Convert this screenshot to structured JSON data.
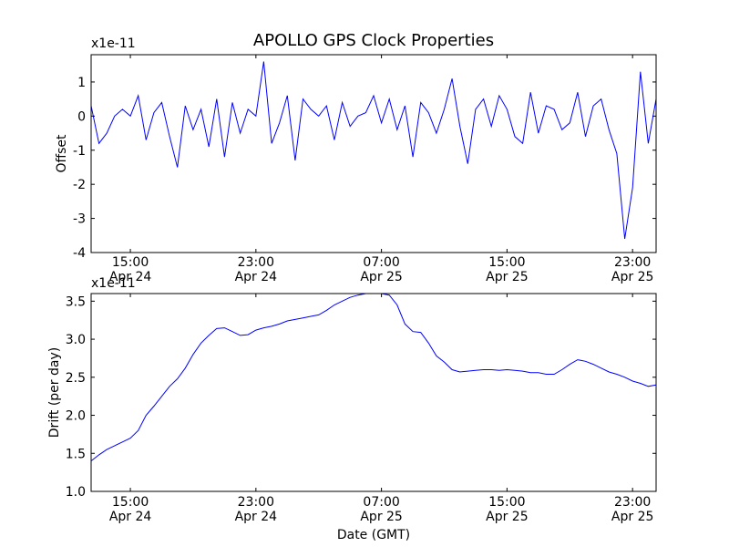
{
  "figure_title": "APOLLO GPS Clock Properties",
  "colors": {
    "line": "#0000ff",
    "axes": "#000000",
    "background": "#ffffff"
  },
  "chart_data": [
    {
      "type": "line",
      "name": "offset",
      "ylabel": "Offset",
      "xlabel": "",
      "scale_label": "x1e-11",
      "ylim": [
        -4,
        1.8
      ],
      "xlim": [
        12.5,
        48.5
      ],
      "yticks": [
        {
          "value": 1,
          "label": "1"
        },
        {
          "value": 0,
          "label": "0"
        },
        {
          "value": -1,
          "label": "-1"
        },
        {
          "value": -2,
          "label": "-2"
        },
        {
          "value": -3,
          "label": "-3"
        },
        {
          "value": -4,
          "label": "-4"
        }
      ],
      "xticks": [
        {
          "value": 15,
          "time": "15:00",
          "date": "Apr 24"
        },
        {
          "value": 23,
          "time": "23:00",
          "date": "Apr 24"
        },
        {
          "value": 31,
          "time": "07:00",
          "date": "Apr 25"
        },
        {
          "value": 39,
          "time": "15:00",
          "date": "Apr 25"
        },
        {
          "value": 47,
          "time": "23:00",
          "date": "Apr 25"
        }
      ],
      "x": [
        12.5,
        13.0,
        13.5,
        14.0,
        14.5,
        15.0,
        15.5,
        16.0,
        16.5,
        17.0,
        17.5,
        18.0,
        18.5,
        19.0,
        19.5,
        20.0,
        20.5,
        21.0,
        21.5,
        22.0,
        22.5,
        23.0,
        23.5,
        24.0,
        24.5,
        25.0,
        25.5,
        26.0,
        26.5,
        27.0,
        27.5,
        28.0,
        28.5,
        29.0,
        29.5,
        30.0,
        30.5,
        31.0,
        31.5,
        32.0,
        32.5,
        33.0,
        33.5,
        34.0,
        34.5,
        35.0,
        35.5,
        36.0,
        36.5,
        37.0,
        37.5,
        38.0,
        38.5,
        39.0,
        39.5,
        40.0,
        40.5,
        41.0,
        41.5,
        42.0,
        42.5,
        43.0,
        43.5,
        44.0,
        44.5,
        45.0,
        45.5,
        46.0,
        46.5,
        47.0,
        47.5,
        48.0,
        48.5
      ],
      "y": [
        0.3,
        -0.8,
        -0.5,
        0.0,
        0.2,
        0.0,
        0.6,
        -0.7,
        0.1,
        0.4,
        -0.6,
        -1.5,
        0.3,
        -0.4,
        0.2,
        -0.9,
        0.5,
        -1.2,
        0.4,
        -0.5,
        0.2,
        0.0,
        1.6,
        -0.8,
        -0.2,
        0.6,
        -1.3,
        0.5,
        0.2,
        0.0,
        0.3,
        -0.7,
        0.4,
        -0.3,
        0.0,
        0.1,
        0.6,
        -0.2,
        0.5,
        -0.4,
        0.3,
        -1.2,
        0.4,
        0.1,
        -0.5,
        0.2,
        1.1,
        -0.3,
        -1.4,
        0.2,
        0.5,
        -0.3,
        0.6,
        0.2,
        -0.6,
        -0.8,
        0.7,
        -0.5,
        0.3,
        0.2,
        -0.4,
        -0.2,
        0.7,
        -0.6,
        0.3,
        0.5,
        -0.4,
        -1.1,
        -3.6,
        -2.1,
        1.3,
        -0.8,
        0.5
      ]
    },
    {
      "type": "line",
      "name": "drift",
      "ylabel": "Drift (per day)",
      "xlabel": "Date (GMT)",
      "scale_label": "x1e-11",
      "ylim": [
        1.0,
        3.6
      ],
      "xlim": [
        12.5,
        48.5
      ],
      "yticks": [
        {
          "value": 1.0,
          "label": "1.0"
        },
        {
          "value": 1.5,
          "label": "1.5"
        },
        {
          "value": 2.0,
          "label": "2.0"
        },
        {
          "value": 2.5,
          "label": "2.5"
        },
        {
          "value": 3.0,
          "label": "3.0"
        },
        {
          "value": 3.5,
          "label": "3.5"
        }
      ],
      "xticks": [
        {
          "value": 15,
          "time": "15:00",
          "date": "Apr 24"
        },
        {
          "value": 23,
          "time": "23:00",
          "date": "Apr 24"
        },
        {
          "value": 31,
          "time": "07:00",
          "date": "Apr 25"
        },
        {
          "value": 39,
          "time": "15:00",
          "date": "Apr 25"
        },
        {
          "value": 47,
          "time": "23:00",
          "date": "Apr 25"
        }
      ],
      "x": [
        12.5,
        13.0,
        13.5,
        14.0,
        14.5,
        15.0,
        15.5,
        16.0,
        16.5,
        17.0,
        17.5,
        18.0,
        18.5,
        19.0,
        19.5,
        20.0,
        20.5,
        21.0,
        21.5,
        22.0,
        22.5,
        23.0,
        23.5,
        24.0,
        24.5,
        25.0,
        25.5,
        26.0,
        26.5,
        27.0,
        27.5,
        28.0,
        28.5,
        29.0,
        29.5,
        30.0,
        30.5,
        31.0,
        31.5,
        32.0,
        32.5,
        33.0,
        33.5,
        34.0,
        34.5,
        35.0,
        35.5,
        36.0,
        36.5,
        37.0,
        37.5,
        38.0,
        38.5,
        39.0,
        39.5,
        40.0,
        40.5,
        41.0,
        41.5,
        42.0,
        42.5,
        43.0,
        43.5,
        44.0,
        44.5,
        45.0,
        45.5,
        46.0,
        46.5,
        47.0,
        47.5,
        48.0,
        48.5
      ],
      "y": [
        1.4,
        1.48,
        1.55,
        1.6,
        1.65,
        1.7,
        1.8,
        2.0,
        2.12,
        2.25,
        2.38,
        2.48,
        2.62,
        2.8,
        2.95,
        3.05,
        3.14,
        3.15,
        3.1,
        3.05,
        3.06,
        3.12,
        3.15,
        3.17,
        3.2,
        3.24,
        3.26,
        3.28,
        3.3,
        3.32,
        3.38,
        3.45,
        3.5,
        3.55,
        3.58,
        3.6,
        3.61,
        3.6,
        3.58,
        3.45,
        3.2,
        3.1,
        3.09,
        2.95,
        2.78,
        2.7,
        2.6,
        2.57,
        2.58,
        2.59,
        2.6,
        2.6,
        2.59,
        2.6,
        2.59,
        2.58,
        2.56,
        2.56,
        2.54,
        2.54,
        2.6,
        2.67,
        2.73,
        2.71,
        2.67,
        2.62,
        2.57,
        2.54,
        2.5,
        2.45,
        2.42,
        2.38,
        2.4
      ]
    }
  ]
}
